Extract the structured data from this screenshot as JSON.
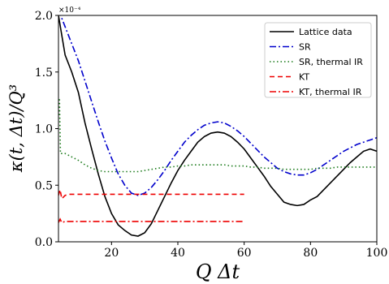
{
  "chart_data": {
    "type": "line",
    "xlabel": "Q Δt",
    "ylabel": "κ(t, Δt)/Q³",
    "y_scale_label": "×10⁻⁴",
    "xlim": [
      4,
      100
    ],
    "ylim": [
      0.0,
      2.0
    ],
    "x_ticks": [
      20,
      40,
      60,
      80,
      100
    ],
    "x_tick_labels": [
      "20",
      "40",
      "60",
      "80",
      "100"
    ],
    "y_ticks": [
      0.0,
      0.5,
      1.0,
      1.5,
      2.0
    ],
    "y_tick_labels": [
      "0.0",
      "0.5",
      "1.0",
      "1.5",
      "2.0"
    ],
    "grid": false,
    "legend_position": "top-right",
    "series": [
      {
        "name": "Lattice data",
        "color": "#000000",
        "dash": "solid",
        "x": [
          4,
          6,
          8,
          10,
          12,
          14,
          16,
          18,
          20,
          22,
          24,
          26,
          28,
          30,
          32,
          34,
          36,
          38,
          40,
          42,
          44,
          46,
          48,
          50,
          52,
          54,
          56,
          58,
          60,
          62,
          64,
          66,
          68,
          70,
          72,
          74,
          76,
          78,
          80,
          82,
          84,
          86,
          88,
          90,
          92,
          94,
          96,
          98,
          100
        ],
        "y": [
          2.0,
          1.65,
          1.5,
          1.32,
          1.05,
          0.82,
          0.6,
          0.4,
          0.25,
          0.15,
          0.1,
          0.06,
          0.05,
          0.08,
          0.16,
          0.28,
          0.4,
          0.52,
          0.63,
          0.72,
          0.8,
          0.88,
          0.93,
          0.96,
          0.97,
          0.96,
          0.93,
          0.88,
          0.82,
          0.74,
          0.66,
          0.58,
          0.49,
          0.42,
          0.35,
          0.33,
          0.32,
          0.33,
          0.37,
          0.4,
          0.46,
          0.52,
          0.58,
          0.64,
          0.7,
          0.75,
          0.8,
          0.82,
          0.8
        ]
      },
      {
        "name": "SR",
        "color": "#0000cc",
        "dash": "dashdot",
        "x": [
          4,
          6,
          8,
          10,
          12,
          14,
          16,
          18,
          20,
          22,
          24,
          26,
          28,
          30,
          32,
          34,
          36,
          38,
          40,
          42,
          44,
          46,
          48,
          50,
          52,
          54,
          56,
          58,
          60,
          62,
          64,
          66,
          68,
          70,
          72,
          74,
          76,
          78,
          80,
          82,
          84,
          86,
          88,
          90,
          92,
          94,
          96,
          98,
          100
        ],
        "y": [
          2.05,
          1.9,
          1.75,
          1.6,
          1.42,
          1.24,
          1.06,
          0.89,
          0.74,
          0.6,
          0.5,
          0.43,
          0.41,
          0.43,
          0.48,
          0.55,
          0.63,
          0.72,
          0.8,
          0.88,
          0.94,
          0.99,
          1.03,
          1.05,
          1.06,
          1.05,
          1.02,
          0.98,
          0.93,
          0.87,
          0.81,
          0.75,
          0.7,
          0.65,
          0.62,
          0.6,
          0.59,
          0.59,
          0.61,
          0.64,
          0.68,
          0.72,
          0.76,
          0.8,
          0.83,
          0.86,
          0.88,
          0.9,
          0.92
        ]
      },
      {
        "name": "SR, thermal IR",
        "color": "#1a7a1a",
        "dash": "dotted",
        "x": [
          4,
          4.3,
          4.6,
          5,
          6,
          8,
          10,
          12,
          14,
          16,
          18,
          20,
          22,
          24,
          26,
          28,
          30,
          32,
          34,
          36,
          38,
          40,
          42,
          44,
          46,
          48,
          50,
          52,
          54,
          56,
          58,
          60,
          62,
          64,
          66,
          68,
          70,
          72,
          74,
          76,
          78,
          80,
          82,
          84,
          86,
          88,
          90,
          92,
          94,
          96,
          98,
          100
        ],
        "y": [
          1.12,
          1.27,
          0.78,
          0.78,
          0.78,
          0.75,
          0.72,
          0.68,
          0.65,
          0.63,
          0.62,
          0.62,
          0.62,
          0.62,
          0.62,
          0.62,
          0.63,
          0.64,
          0.65,
          0.66,
          0.66,
          0.67,
          0.67,
          0.68,
          0.68,
          0.68,
          0.68,
          0.68,
          0.68,
          0.67,
          0.67,
          0.67,
          0.66,
          0.66,
          0.65,
          0.65,
          0.65,
          0.64,
          0.64,
          0.64,
          0.64,
          0.64,
          0.65,
          0.65,
          0.65,
          0.66,
          0.66,
          0.66,
          0.66,
          0.66,
          0.66,
          0.66
        ]
      },
      {
        "name": "KT",
        "color": "#ee0000",
        "dash": "dashed",
        "x": [
          4,
          4.5,
          5,
          6,
          7,
          8,
          10,
          12,
          14,
          20,
          30,
          40,
          50,
          60
        ],
        "y": [
          0.41,
          0.46,
          0.38,
          0.41,
          0.42,
          0.42,
          0.42,
          0.42,
          0.42,
          0.42,
          0.42,
          0.42,
          0.42,
          0.42
        ]
      },
      {
        "name": "KT, thermal IR",
        "color": "#ee0000",
        "dash": "dashdot",
        "x": [
          4,
          4.5,
          5,
          6,
          8,
          10,
          20,
          30,
          40,
          50,
          60
        ],
        "y": [
          0.17,
          0.2,
          0.17,
          0.18,
          0.18,
          0.18,
          0.18,
          0.18,
          0.18,
          0.18,
          0.18
        ]
      }
    ]
  }
}
